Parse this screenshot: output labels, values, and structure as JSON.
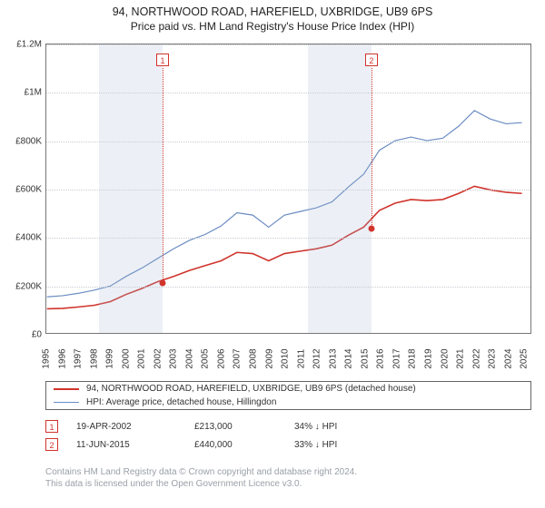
{
  "title_main": "94, NORTHWOOD ROAD, HAREFIELD, UXBRIDGE, UB9 6PS",
  "title_sub": "Price paid vs. HM Land Registry's House Price Index (HPI)",
  "chart": {
    "type": "line",
    "xlim": [
      1995,
      2025.5
    ],
    "ylim": [
      0,
      1200000
    ],
    "ytick_step": 200000,
    "yticks": [
      "£0",
      "£200K",
      "£400K",
      "£600K",
      "£800K",
      "£1M",
      "£1.2M"
    ],
    "xticks": [
      1995,
      1996,
      1997,
      1998,
      1999,
      2000,
      2001,
      2002,
      2003,
      2004,
      2005,
      2006,
      2007,
      2008,
      2009,
      2010,
      2011,
      2012,
      2013,
      2014,
      2015,
      2016,
      2017,
      2018,
      2019,
      2020,
      2021,
      2022,
      2023,
      2024,
      2025
    ],
    "background_color": "#ffffff",
    "grid_color": "#c8ccd4",
    "border_color": "#777777",
    "shaded_ranges": [
      {
        "start": 1998.3,
        "end": 2002.3
      },
      {
        "start": 2011.4,
        "end": 2015.4
      }
    ],
    "series": [
      {
        "name": "red",
        "color": "#d0342c",
        "line_width": 1.6,
        "data": [
          [
            1995,
            100000
          ],
          [
            1996,
            102000
          ],
          [
            1997,
            108000
          ],
          [
            1998,
            115000
          ],
          [
            1999,
            130000
          ],
          [
            2000,
            160000
          ],
          [
            2001,
            185000
          ],
          [
            2002,
            213000
          ],
          [
            2003,
            235000
          ],
          [
            2004,
            260000
          ],
          [
            2005,
            280000
          ],
          [
            2006,
            300000
          ],
          [
            2007,
            335000
          ],
          [
            2008,
            330000
          ],
          [
            2009,
            300000
          ],
          [
            2010,
            330000
          ],
          [
            2011,
            340000
          ],
          [
            2012,
            350000
          ],
          [
            2013,
            365000
          ],
          [
            2014,
            405000
          ],
          [
            2015,
            440000
          ],
          [
            2016,
            510000
          ],
          [
            2017,
            540000
          ],
          [
            2018,
            555000
          ],
          [
            2019,
            550000
          ],
          [
            2020,
            555000
          ],
          [
            2021,
            580000
          ],
          [
            2022,
            610000
          ],
          [
            2023,
            595000
          ],
          [
            2024,
            585000
          ],
          [
            2025,
            580000
          ]
        ]
      },
      {
        "name": "blue",
        "color": "#6a8bc2",
        "line_width": 1.2,
        "data": [
          [
            1995,
            150000
          ],
          [
            1996,
            155000
          ],
          [
            1997,
            165000
          ],
          [
            1998,
            178000
          ],
          [
            1999,
            195000
          ],
          [
            2000,
            235000
          ],
          [
            2001,
            270000
          ],
          [
            2002,
            310000
          ],
          [
            2003,
            350000
          ],
          [
            2004,
            385000
          ],
          [
            2005,
            410000
          ],
          [
            2006,
            445000
          ],
          [
            2007,
            500000
          ],
          [
            2008,
            490000
          ],
          [
            2009,
            440000
          ],
          [
            2010,
            490000
          ],
          [
            2011,
            505000
          ],
          [
            2012,
            520000
          ],
          [
            2013,
            545000
          ],
          [
            2014,
            605000
          ],
          [
            2015,
            660000
          ],
          [
            2016,
            760000
          ],
          [
            2017,
            800000
          ],
          [
            2018,
            815000
          ],
          [
            2019,
            800000
          ],
          [
            2020,
            810000
          ],
          [
            2021,
            860000
          ],
          [
            2022,
            925000
          ],
          [
            2023,
            890000
          ],
          [
            2024,
            870000
          ],
          [
            2025,
            875000
          ]
        ]
      }
    ],
    "markers": [
      {
        "x": 2002.3,
        "y": 213000,
        "color": "#d0342c",
        "flag": "1"
      },
      {
        "x": 2015.4,
        "y": 440000,
        "color": "#d0342c",
        "flag": "2"
      }
    ]
  },
  "legend": {
    "items": [
      {
        "color": "#d0342c",
        "width": 2,
        "label": "94, NORTHWOOD ROAD, HAREFIELD, UXBRIDGE, UB9 6PS (detached house)"
      },
      {
        "color": "#6a8bc2",
        "width": 1.4,
        "label": "HPI: Average price, detached house, Hillingdon"
      }
    ]
  },
  "transactions": [
    {
      "flag": "1",
      "date": "19-APR-2002",
      "price": "£213,000",
      "diff": "34% ↓ HPI"
    },
    {
      "flag": "2",
      "date": "11-JUN-2015",
      "price": "£440,000",
      "diff": "33% ↓ HPI"
    }
  ],
  "footer_line1": "Contains HM Land Registry data © Crown copyright and database right 2024.",
  "footer_line2": "This data is licensed under the Open Government Licence v3.0."
}
